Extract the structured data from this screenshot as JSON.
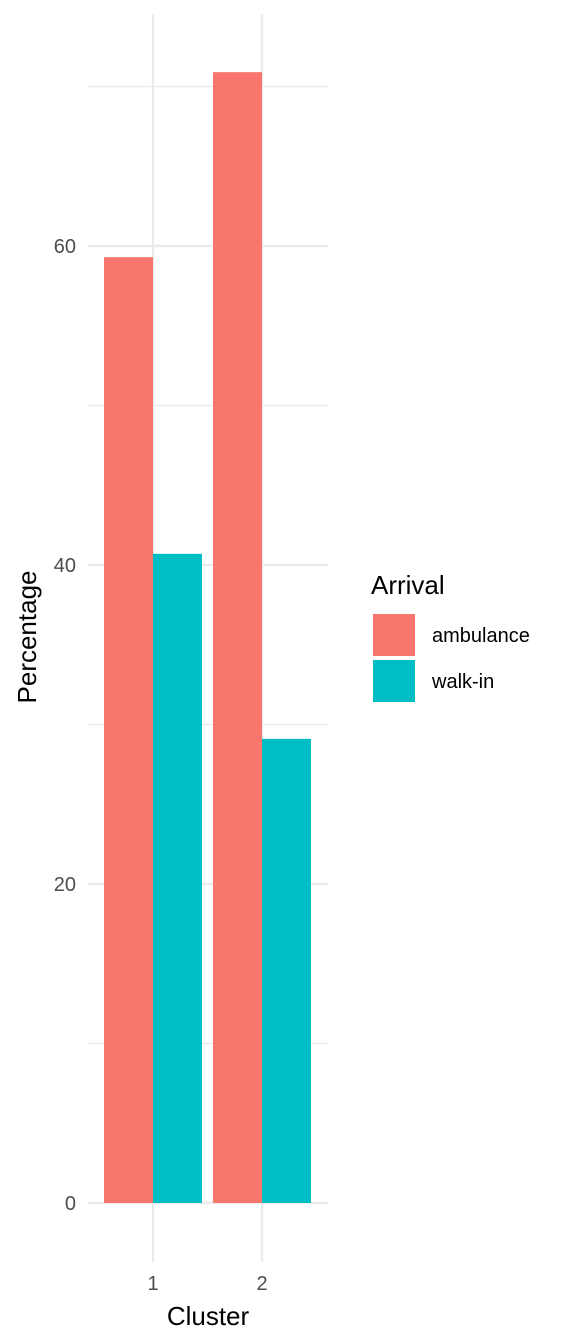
{
  "chart_data": {
    "type": "bar",
    "categories": [
      "1",
      "2"
    ],
    "series": [
      {
        "name": "ambulance",
        "values": [
          59.3,
          70.9
        ],
        "color": "#F8766D"
      },
      {
        "name": "walk-in",
        "values": [
          40.7,
          29.1
        ],
        "color": "#00BFC4"
      }
    ],
    "xlabel": "Cluster",
    "ylabel": "Percentage",
    "ylim": [
      0,
      70.9
    ],
    "yticks": [
      0,
      20,
      40,
      60
    ],
    "ytick_labels": [
      "0",
      "20",
      "40",
      "60"
    ],
    "grid": true,
    "legend": {
      "title": "Arrival",
      "placement": "right",
      "entries": [
        "ambulance",
        "walk-in"
      ]
    }
  }
}
